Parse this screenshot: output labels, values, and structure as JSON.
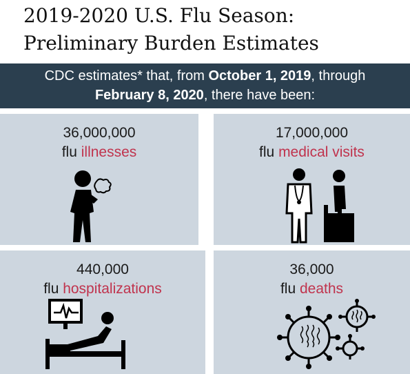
{
  "title": {
    "line1": "2019-2020 U.S. Flu Season:",
    "line2": "Preliminary Burden Estimates"
  },
  "banner": {
    "line1_pre": "CDC estimates* that, from ",
    "line1_date": "October 1, 2019",
    "line1_post": ", through",
    "line2_date": "February 8, 2020",
    "line2_post": ", there have been:"
  },
  "stats": [
    {
      "number": "36,000,000",
      "prefix": "flu ",
      "label": "illnesses",
      "icon": "sick-person-icon"
    },
    {
      "number": "17,000,000",
      "prefix": "flu ",
      "label": "medical visits",
      "icon": "doctor-patient-icon"
    },
    {
      "number": "440,000",
      "prefix": "flu ",
      "label": "hospitalizations",
      "icon": "hospital-bed-icon"
    },
    {
      "number": "36,000",
      "prefix": "flu ",
      "label": "deaths",
      "icon": "virus-icon"
    }
  ],
  "colors": {
    "banner_bg": "#2b3f4f",
    "panel_bg": "#cdd6df",
    "highlight": "#c0334d"
  }
}
